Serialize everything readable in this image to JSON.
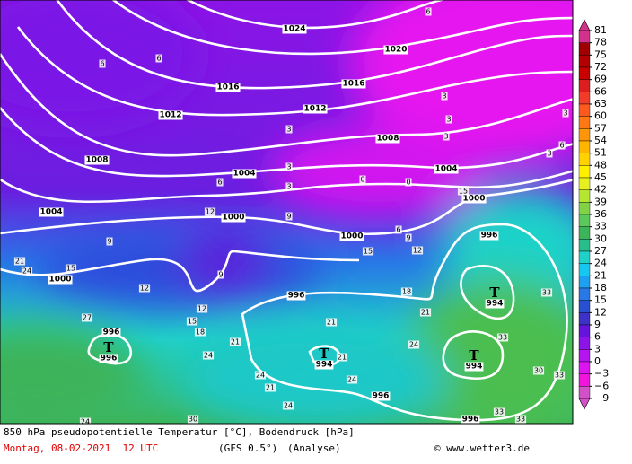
{
  "caption": {
    "title": "850 hPa pseudopotentielle Temperatur [°C], Bodendruck [hPa]",
    "date": "Montag, 08-02-2021  12 UTC",
    "model": "(GFS 0.5°)",
    "run": "(Analyse)",
    "credit": "© www.wetter3.de"
  },
  "legend": {
    "ticks": [
      81,
      78,
      75,
      72,
      69,
      66,
      63,
      60,
      57,
      54,
      51,
      48,
      45,
      42,
      39,
      36,
      33,
      30,
      27,
      24,
      21,
      18,
      15,
      12,
      9,
      6,
      3,
      0,
      {
        "value": -3,
        "label": "−3"
      },
      {
        "value": -6,
        "label": "−6"
      },
      {
        "value": -9,
        "label": "−9"
      }
    ],
    "colors": [
      "#d2328c",
      "#a00000",
      "#b40000",
      "#c80000",
      "#dc1e1e",
      "#f03c28",
      "#ff5a1e",
      "#ff7814",
      "#ff960a",
      "#ffb400",
      "#ffd200",
      "#fff000",
      "#e6f01e",
      "#b4e632",
      "#82d246",
      "#5ac85a",
      "#3cb45a",
      "#28be8c",
      "#1ed2c8",
      "#14c8f0",
      "#1ea0f0",
      "#2878e6",
      "#2850d2",
      "#3c32c8",
      "#6414dc",
      "#8c14e6",
      "#b414f0",
      "#dc14f0",
      "#f014dc",
      "#d250c8"
    ]
  },
  "isobar_labels": [
    1024,
    1020,
    1016,
    1016,
    1012,
    1012,
    1008,
    1008,
    1004,
    1004,
    1004,
    1000,
    1000,
    1000,
    1000,
    996,
    996,
    996,
    996,
    996
  ],
  "lows": [
    {
      "symbol": "T",
      "pressure": 994
    },
    {
      "symbol": "T",
      "pressure": 994
    },
    {
      "symbol": "T",
      "pressure": 994
    },
    {
      "symbol": "T",
      "pressure": 996
    }
  ],
  "temperature_labels": [
    6,
    6,
    6,
    3,
    3,
    3,
    3,
    3,
    3,
    3,
    0,
    0,
    6,
    12,
    9,
    6,
    9,
    12,
    15,
    9,
    9,
    12,
    15,
    21,
    24,
    15,
    18,
    12,
    15,
    18,
    27,
    21,
    21,
    21,
    24,
    24,
    24,
    21,
    21,
    24,
    24,
    24,
    30,
    33,
    33,
    30,
    33,
    33,
    33,
    3,
    6
  ]
}
